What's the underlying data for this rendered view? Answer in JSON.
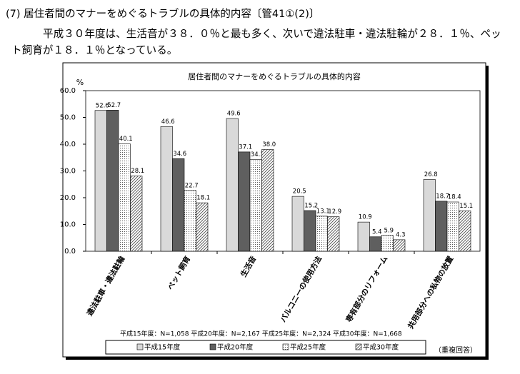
{
  "header": {
    "title": "(7) 居住者間のマナーをめぐるトラブルの具体的内容〔管41①(2)〕"
  },
  "body": "平成３０年度は、生活音が３８．０％と最も多く、次いで違法駐車・違法駐輪が２８．１％、ペット飼育が１８．１％となっている。",
  "chart_data": {
    "type": "bar",
    "title": "居住者間のマナーをめぐるトラブルの具体的内容",
    "y_unit": "%",
    "categories": [
      "違法駐車・違法駐輪",
      "ペット飼育",
      "生活音",
      "バルコニーの使用方法",
      "専有部分のリフォーム",
      "共用部分への私物の放置"
    ],
    "series": [
      {
        "name": "平成15年度",
        "color": "#d9d9d9",
        "pattern": null,
        "values": [
          52.6,
          46.6,
          49.6,
          20.5,
          10.9,
          26.8
        ],
        "value_labels": [
          "52.6",
          "46.6",
          "49.6",
          "20.5",
          "10.9",
          "26.8"
        ]
      },
      {
        "name": "平成20年度",
        "color": "#5f5f5f",
        "pattern": null,
        "values": [
          52.7,
          34.6,
          37.1,
          15.2,
          5.4,
          18.7
        ],
        "value_labels": [
          "52.7",
          "34.6",
          "37.1",
          "15.2",
          "5.4",
          "18.7"
        ]
      },
      {
        "name": "平成25年度",
        "color": "#ffffff",
        "pattern": "dots",
        "values": [
          40.1,
          22.7,
          34.3,
          13.1,
          5.9,
          18.4
        ],
        "value_labels": [
          "40.1",
          "22.7",
          "34.3",
          "13.1",
          "5.9",
          "18.4"
        ]
      },
      {
        "name": "平成30年度",
        "color": "#ffffff",
        "pattern": "hatch",
        "values": [
          28.1,
          18.1,
          38.0,
          12.9,
          4.3,
          15.1
        ],
        "value_labels": [
          "28.1",
          "18.1",
          "38.0",
          "12.9",
          "4.3",
          "15.1"
        ]
      }
    ],
    "ylim": [
      0,
      60
    ],
    "yticks": [
      {
        "value": 0,
        "label": "0.0"
      },
      {
        "value": 10,
        "label": "10.0"
      },
      {
        "value": 20,
        "label": "20.0"
      },
      {
        "value": 30,
        "label": "30.0"
      },
      {
        "value": 40,
        "label": "40.0"
      },
      {
        "value": 50,
        "label": "50.0"
      },
      {
        "value": 60,
        "label": "60.0"
      }
    ],
    "note": "平成15年度：N=1,058 平成20年度：N=2,167 平成25年度：N=2,324 平成30年度：N=1,668",
    "footnote": "（重複回答）"
  }
}
